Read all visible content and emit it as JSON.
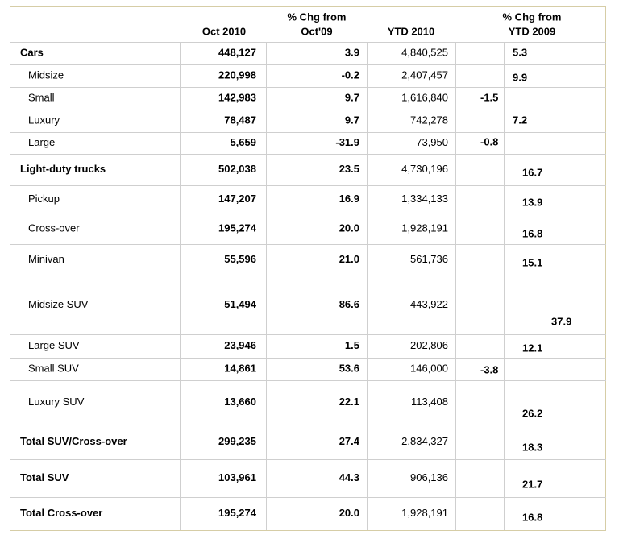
{
  "header": {
    "columns": [
      [
        "Oct 2010"
      ],
      [
        "% Chg from",
        "Oct'09"
      ],
      [
        "YTD 2010"
      ],
      [
        "% Chg from",
        "YTD 2009"
      ]
    ]
  },
  "table": {
    "rows": [
      [
        "Cars",
        "448,127",
        "3.9",
        "4,840,525",
        "5.3"
      ],
      [
        "Midsize",
        "220,998",
        "-0.2",
        "2,407,457",
        "9.9"
      ],
      [
        "Small",
        "142,983",
        "9.7",
        "1,616,840",
        "-1.5"
      ],
      [
        "Luxury",
        "78,487",
        "9.7",
        "742,278",
        "7.2"
      ],
      [
        "Large",
        "5,659",
        "-31.9",
        "73,950",
        "-0.8"
      ],
      [
        "Light-duty trucks",
        "502,038",
        "23.5",
        "4,730,196",
        "16.7"
      ],
      [
        "Pickup",
        "147,207",
        "16.9",
        "1,334,133",
        "13.9"
      ],
      [
        "Cross-over",
        "195,274",
        "20.0",
        "1,928,191",
        "16.8"
      ],
      [
        "Minivan",
        "55,596",
        "21.0",
        "561,736",
        "15.1"
      ],
      [
        "Midsize SUV",
        "51,494",
        "86.6",
        "443,922",
        "37.9"
      ],
      [
        "Large SUV",
        "23,946",
        "1.5",
        "202,806",
        "12.1"
      ],
      [
        "Small  SUV",
        "14,861",
        "53.6",
        "146,000",
        "-3.8"
      ],
      [
        "Luxury SUV",
        "13,660",
        "22.1",
        "113,408",
        "26.2"
      ],
      [
        "Total SUV/Cross-over",
        "299,235",
        "27.4",
        "2,834,327",
        "18.3"
      ],
      [
        "Total SUV",
        "103,961",
        "44.3",
        "906,136",
        "21.7"
      ],
      [
        "Total Cross-over",
        "195,274",
        "20.0",
        "1,928,191",
        "16.8"
      ]
    ]
  }
}
